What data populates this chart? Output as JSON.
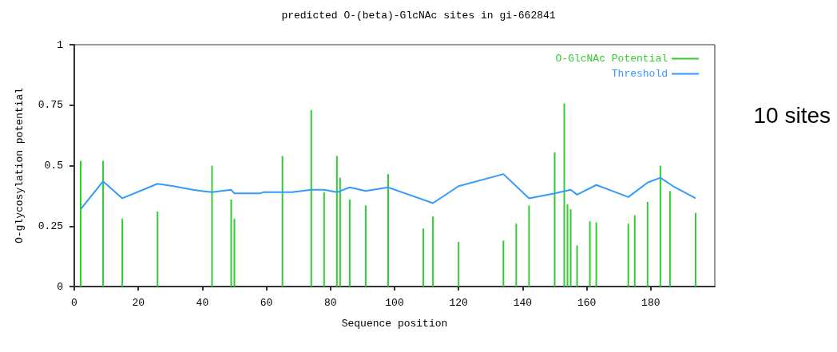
{
  "chart_data": {
    "type": "bar",
    "title": "predicted O-(beta)-GlcNAc sites in gi-662841",
    "xlabel": "Sequence position",
    "ylabel": "O-glycosylation potential",
    "series": [
      {
        "name": "O-GlcNAc Potential",
        "color": "#33cc33",
        "x": [
          2,
          9,
          15,
          26,
          43,
          49,
          50,
          65,
          74,
          78,
          82,
          83,
          86,
          91,
          98,
          109,
          112,
          120,
          134,
          138,
          142,
          150,
          153,
          154,
          155,
          157,
          161,
          163,
          173,
          175,
          179,
          183,
          186,
          194
        ],
        "values": [
          0.52,
          0.52,
          0.28,
          0.31,
          0.5,
          0.36,
          0.28,
          0.54,
          0.73,
          0.39,
          0.54,
          0.45,
          0.36,
          0.335,
          0.465,
          0.24,
          0.29,
          0.185,
          0.19,
          0.26,
          0.335,
          0.555,
          0.757,
          0.34,
          0.32,
          0.17,
          0.27,
          0.265,
          0.26,
          0.295,
          0.35,
          0.5,
          0.395,
          0.305
        ]
      },
      {
        "name": "Threshold",
        "type": "line",
        "color": "#3399ff",
        "x": [
          2,
          9,
          15,
          26,
          31,
          37,
          43,
          49,
          50,
          58,
          59,
          68,
          74,
          78,
          82,
          86,
          91,
          98,
          112,
          120,
          134,
          142,
          150,
          155,
          157,
          163,
          173,
          179,
          183,
          187,
          194
        ],
        "values": [
          0.32,
          0.435,
          0.365,
          0.425,
          0.415,
          0.4,
          0.39,
          0.4,
          0.385,
          0.385,
          0.39,
          0.39,
          0.4,
          0.4,
          0.39,
          0.41,
          0.395,
          0.41,
          0.345,
          0.415,
          0.465,
          0.365,
          0.385,
          0.4,
          0.38,
          0.42,
          0.37,
          0.43,
          0.45,
          0.415,
          0.365
        ]
      }
    ],
    "xlim": [
      0,
      200
    ],
    "xticks": [
      0,
      20,
      40,
      60,
      80,
      100,
      120,
      140,
      160,
      180
    ],
    "ylim": [
      0,
      1
    ],
    "yticks": [
      0,
      0.25,
      0.5,
      0.75,
      1
    ],
    "grid": false,
    "legend": "top right",
    "marker": "none",
    "line_style": "solid",
    "annotations": [
      "10 sites"
    ]
  }
}
